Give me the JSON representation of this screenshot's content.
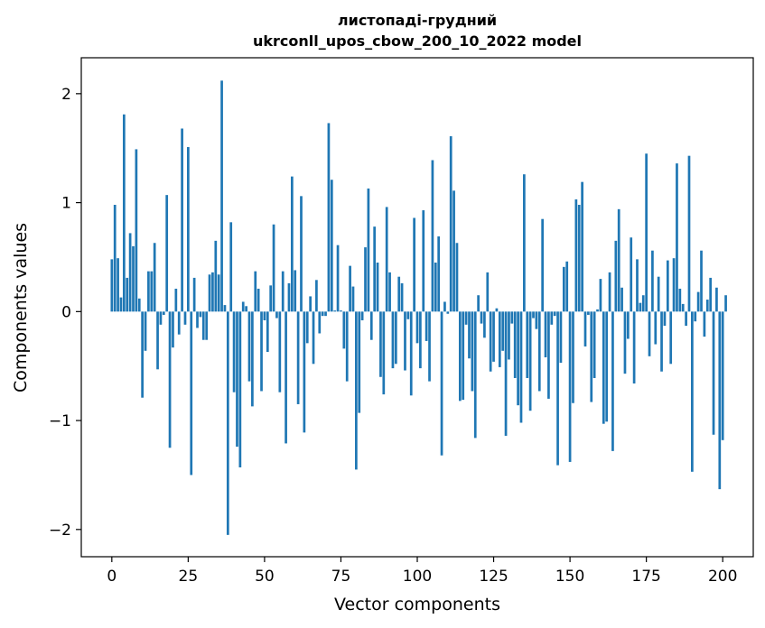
{
  "chart_data": {
    "type": "bar",
    "title": [
      "листопаді-грудний",
      "ukrconll_upos_cbow_200_10_2022 model"
    ],
    "xlabel": "Vector components",
    "ylabel": "Components values",
    "xlim": [
      -10,
      210
    ],
    "ylim": [
      -2.25,
      2.33
    ],
    "xticks": [
      0,
      25,
      50,
      75,
      100,
      125,
      150,
      175,
      200
    ],
    "yticks": [
      -2,
      -1,
      0,
      1,
      2
    ],
    "bar_color": "#1f77b4",
    "values": [
      0.48,
      0.98,
      0.49,
      0.13,
      1.81,
      0.31,
      0.72,
      0.6,
      1.49,
      0.12,
      -0.79,
      -0.36,
      0.37,
      0.37,
      0.63,
      -0.53,
      -0.12,
      -0.03,
      1.07,
      -1.25,
      -0.33,
      0.21,
      -0.21,
      1.68,
      -0.12,
      1.51,
      -1.5,
      0.31,
      -0.15,
      -0.05,
      -0.26,
      -0.26,
      0.34,
      0.36,
      0.65,
      0.34,
      2.12,
      0.06,
      -2.05,
      0.82,
      -0.74,
      -1.24,
      -1.43,
      0.09,
      0.05,
      -0.64,
      -0.87,
      0.37,
      0.21,
      -0.73,
      -0.08,
      -0.37,
      0.24,
      0.8,
      -0.06,
      -0.74,
      0.37,
      -1.21,
      0.26,
      1.24,
      0.38,
      -0.85,
      1.06,
      -1.11,
      -0.29,
      0.14,
      -0.48,
      0.29,
      -0.2,
      -0.04,
      -0.04,
      1.73,
      1.21,
      0.01,
      0.61,
      0.01,
      -0.34,
      -0.64,
      0.42,
      0.23,
      -1.45,
      -0.93,
      -0.08,
      0.59,
      1.13,
      -0.26,
      0.78,
      0.45,
      -0.6,
      -0.76,
      0.96,
      0.36,
      -0.52,
      -0.48,
      0.32,
      0.26,
      -0.54,
      -0.07,
      -0.77,
      0.86,
      -0.29,
      -0.52,
      0.93,
      -0.27,
      -0.64,
      1.39,
      0.45,
      0.69,
      -1.32,
      0.09,
      -0.02,
      1.61,
      1.11,
      0.63,
      -0.82,
      -0.81,
      -0.12,
      -0.43,
      -0.73,
      -1.16,
      0.15,
      -0.11,
      -0.24,
      0.36,
      -0.55,
      -0.46,
      0.03,
      -0.51,
      -0.36,
      -1.14,
      -0.44,
      -0.11,
      -0.61,
      -0.86,
      -1.02,
      1.26,
      -0.61,
      -0.91,
      -0.06,
      -0.16,
      -0.73,
      0.85,
      -0.42,
      -0.8,
      -0.12,
      -0.04,
      -1.41,
      -0.47,
      0.41,
      0.46,
      -1.38,
      -0.84,
      1.03,
      0.98,
      1.19,
      -0.32,
      -0.03,
      -0.83,
      -0.61,
      0.02,
      0.3,
      -1.03,
      -1.01,
      0.36,
      -1.28,
      0.65,
      0.94,
      0.22,
      -0.57,
      -0.25,
      0.68,
      -0.66,
      0.48,
      0.08,
      0.15,
      1.45,
      -0.41,
      0.56,
      -0.3,
      0.32,
      -0.55,
      -0.13,
      0.47,
      -0.48,
      0.49,
      1.36,
      0.21,
      0.07,
      -0.13,
      1.43,
      -1.47,
      -0.09,
      0.18,
      0.56,
      -0.23,
      0.11,
      0.31,
      -1.13,
      0.22,
      -1.63,
      -1.18,
      0.15
    ]
  }
}
